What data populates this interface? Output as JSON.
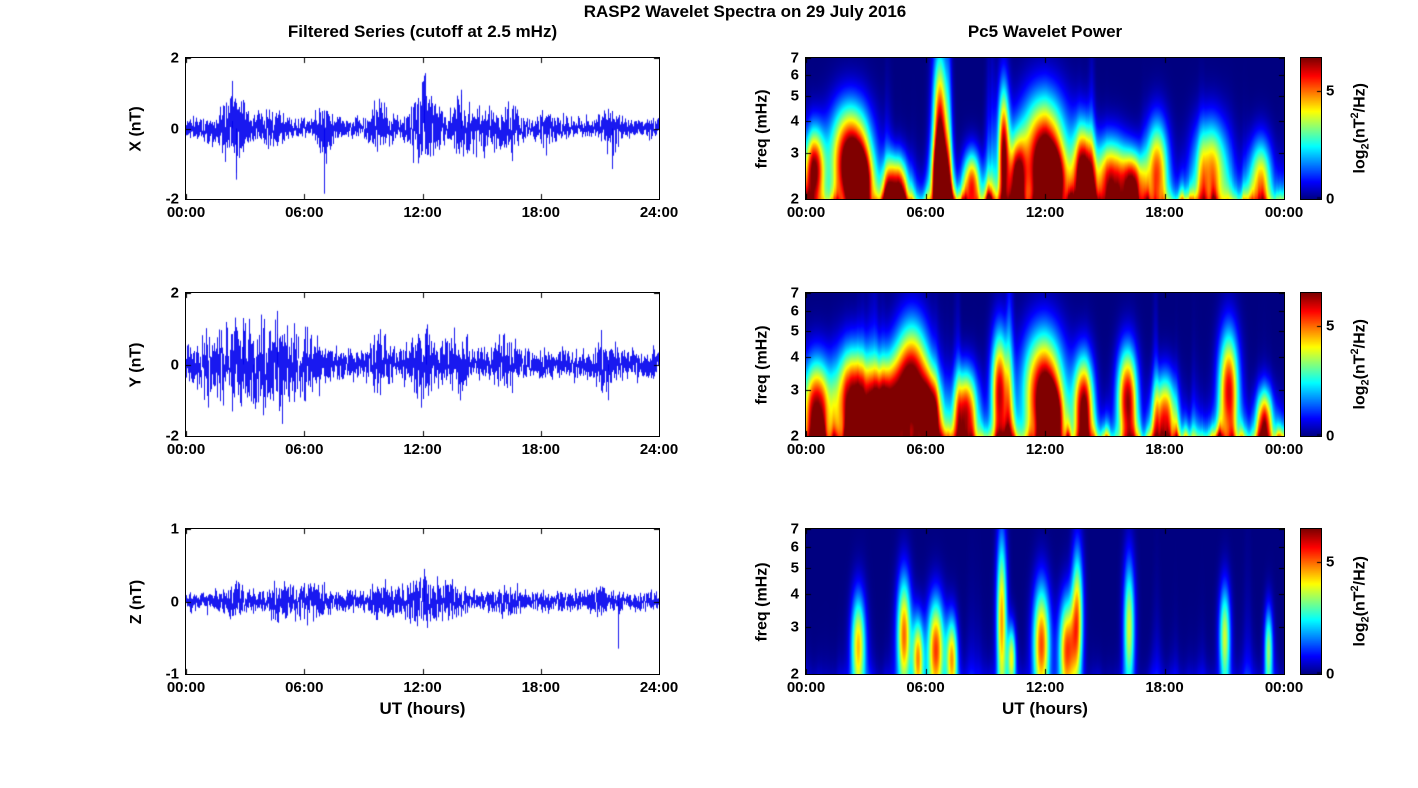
{
  "figure": {
    "title": "RASP2 Wavelet Spectra on 29 July 2016",
    "left_title": "Filtered Series (cutoff at 2.5 mHz)",
    "right_title": "Pc5 Wavelet Power",
    "xlabel": "UT (hours)"
  },
  "colorbar": {
    "label": {
      "p1": "log",
      "sub": "2",
      "p2": "(nT",
      "sup": "2",
      "p3": "/Hz)"
    },
    "ticks": [
      0,
      5
    ],
    "max": 6.5
  },
  "chart_data": [
    {
      "type": "line",
      "id": "ts-x",
      "ylabel": "X (nT)",
      "xlabel": "UT (hours)",
      "xlim": [
        0,
        24
      ],
      "ylim": [
        -2,
        2
      ],
      "yticks": [
        2,
        0,
        -2
      ],
      "xticks": [
        0,
        6,
        12,
        18,
        24
      ],
      "xtick_labels": [
        "00:00",
        "06:00",
        "12:00",
        "18:00",
        "24:00"
      ],
      "line_color": "#0000ee",
      "noise": {
        "seed": 11,
        "base": 0.2,
        "bursts": [
          [
            2.4,
            0.5,
            0.5
          ],
          [
            4.3,
            0.4,
            0.2
          ],
          [
            7.0,
            0.25,
            0.5
          ],
          [
            9.9,
            0.3,
            0.35
          ],
          [
            12.1,
            0.5,
            0.6
          ],
          [
            13.9,
            0.3,
            0.4
          ],
          [
            15.0,
            0.6,
            0.3
          ],
          [
            16.5,
            0.4,
            0.25
          ],
          [
            18.2,
            0.3,
            0.2
          ],
          [
            21.5,
            0.3,
            0.3
          ]
        ],
        "spikes": [
          [
            7.02,
            -1.85
          ],
          [
            12.1,
            1.5
          ],
          [
            2.35,
            1.35
          ],
          [
            13.95,
            1.1
          ],
          [
            21.6,
            -1.15
          ],
          [
            2.55,
            -1.45
          ]
        ]
      }
    },
    {
      "type": "line",
      "id": "ts-y",
      "ylabel": "Y (nT)",
      "xlabel": "UT (hours)",
      "xlim": [
        0,
        24
      ],
      "ylim": [
        -2,
        2
      ],
      "yticks": [
        2,
        0,
        -2
      ],
      "xticks": [
        0,
        6,
        12,
        18,
        24
      ],
      "xtick_labels": [
        "00:00",
        "06:00",
        "12:00",
        "18:00",
        "24:00"
      ],
      "line_color": "#0000ee",
      "noise": {
        "seed": 23,
        "base": 0.26,
        "bursts": [
          [
            1.0,
            0.6,
            0.25
          ],
          [
            2.5,
            0.8,
            0.45
          ],
          [
            4.5,
            0.9,
            0.55
          ],
          [
            6.3,
            0.5,
            0.3
          ],
          [
            9.8,
            0.4,
            0.3
          ],
          [
            12.0,
            0.6,
            0.4
          ],
          [
            13.8,
            0.4,
            0.3
          ],
          [
            16.2,
            0.5,
            0.25
          ],
          [
            21.3,
            0.4,
            0.3
          ]
        ],
        "spikes": [
          [
            4.6,
            1.5
          ],
          [
            2.9,
            1.3
          ],
          [
            3.4,
            -1.1
          ],
          [
            21.4,
            -1.0
          ],
          [
            12.2,
            1.0
          ]
        ]
      }
    },
    {
      "type": "line",
      "id": "ts-z",
      "ylabel": "Z (nT)",
      "xlabel": "UT (hours)",
      "xlim": [
        0,
        24
      ],
      "ylim": [
        -1,
        1
      ],
      "yticks": [
        1,
        0,
        -1
      ],
      "xticks": [
        0,
        6,
        12,
        18,
        24
      ],
      "xtick_labels": [
        "00:00",
        "06:00",
        "12:00",
        "18:00",
        "24:00"
      ],
      "line_color": "#0000ee",
      "noise": {
        "seed": 37,
        "base": 0.09,
        "bursts": [
          [
            2.5,
            0.5,
            0.08
          ],
          [
            5.0,
            0.6,
            0.1
          ],
          [
            6.5,
            0.4,
            0.1
          ],
          [
            9.8,
            0.4,
            0.08
          ],
          [
            12.0,
            0.8,
            0.16
          ],
          [
            13.2,
            0.5,
            0.1
          ],
          [
            16.0,
            0.5,
            0.06
          ],
          [
            21.0,
            0.4,
            0.05
          ]
        ],
        "spikes": [
          [
            21.9,
            -0.65
          ],
          [
            12.1,
            0.45
          ]
        ]
      }
    },
    {
      "type": "heatmap",
      "id": "wv-x",
      "ylabel": "freq (mHz)",
      "xlabel": "UT (hours)",
      "xlim": [
        0,
        24
      ],
      "ylim": [
        2,
        7
      ],
      "yscale": "log",
      "yticks": [
        7,
        6,
        5,
        4,
        3,
        2
      ],
      "xticks": [
        0,
        6,
        12,
        18,
        24
      ],
      "xtick_labels": [
        "00:00",
        "06:00",
        "12:00",
        "18:00",
        "00:00"
      ],
      "clim": [
        0,
        6.5
      ],
      "colorbar_ticks": [
        0,
        5
      ],
      "colorbar_label": "log2(nT^2/Hz)",
      "colormap": "jet",
      "field": {
        "seed": 101,
        "gain": 4.6,
        "reach": 1.5,
        "band": 4.8,
        "blobs": [
          [
            0.4,
            2.6,
            0.35,
            0.25,
            6.2
          ],
          [
            2.2,
            3.0,
            0.7,
            0.3,
            6.5
          ],
          [
            2.6,
            2.3,
            0.5,
            0.2,
            6.4
          ],
          [
            4.5,
            2.2,
            0.4,
            0.2,
            5.5
          ],
          [
            6.7,
            3.5,
            0.25,
            0.5,
            6.3
          ],
          [
            6.7,
            2.3,
            0.3,
            0.25,
            6.0
          ],
          [
            8.3,
            2.3,
            0.3,
            0.2,
            5.0
          ],
          [
            9.9,
            3.0,
            0.2,
            0.4,
            6.2
          ],
          [
            10.6,
            2.4,
            0.3,
            0.25,
            5.4
          ],
          [
            11.9,
            3.0,
            0.8,
            0.35,
            6.5
          ],
          [
            12.3,
            2.3,
            0.5,
            0.2,
            6.2
          ],
          [
            13.9,
            2.5,
            0.35,
            0.3,
            6.3
          ],
          [
            15.3,
            2.4,
            0.6,
            0.25,
            5.2
          ],
          [
            16.4,
            2.3,
            0.4,
            0.2,
            4.8
          ],
          [
            17.6,
            2.6,
            0.4,
            0.3,
            5.0
          ],
          [
            20.3,
            2.6,
            0.6,
            0.3,
            4.6
          ],
          [
            22.8,
            2.4,
            0.4,
            0.25,
            4.0
          ]
        ]
      }
    },
    {
      "type": "heatmap",
      "id": "wv-y",
      "ylabel": "freq (mHz)",
      "xlabel": "UT (hours)",
      "xlim": [
        0,
        24
      ],
      "ylim": [
        2,
        7
      ],
      "yscale": "log",
      "yticks": [
        7,
        6,
        5,
        4,
        3,
        2
      ],
      "xticks": [
        0,
        6,
        12,
        18,
        24
      ],
      "xtick_labels": [
        "00:00",
        "06:00",
        "12:00",
        "18:00",
        "00:00"
      ],
      "clim": [
        0,
        6.5
      ],
      "colorbar_ticks": [
        0,
        5
      ],
      "colorbar_label": "log2(nT^2/Hz)",
      "colormap": "jet",
      "field": {
        "seed": 202,
        "gain": 4.6,
        "reach": 1.5,
        "band": 5.2,
        "blobs": [
          [
            0.5,
            2.5,
            0.5,
            0.3,
            6.4
          ],
          [
            2.3,
            2.8,
            0.6,
            0.3,
            6.2
          ],
          [
            4.0,
            2.5,
            0.7,
            0.3,
            6.5
          ],
          [
            5.3,
            3.2,
            0.6,
            0.35,
            6.5
          ],
          [
            6.2,
            2.4,
            0.4,
            0.25,
            6.3
          ],
          [
            8.0,
            2.5,
            0.4,
            0.25,
            5.6
          ],
          [
            9.7,
            3.0,
            0.3,
            0.35,
            5.8
          ],
          [
            11.9,
            3.0,
            0.7,
            0.35,
            6.5
          ],
          [
            12.3,
            2.3,
            0.4,
            0.2,
            6.0
          ],
          [
            13.9,
            2.6,
            0.35,
            0.3,
            6.2
          ],
          [
            16.1,
            2.8,
            0.35,
            0.3,
            6.0
          ],
          [
            18.0,
            2.4,
            0.4,
            0.25,
            5.0
          ],
          [
            21.2,
            3.0,
            0.35,
            0.35,
            5.8
          ],
          [
            23.0,
            2.3,
            0.3,
            0.2,
            4.5
          ]
        ]
      }
    },
    {
      "type": "heatmap",
      "id": "wv-z",
      "ylabel": "freq (mHz)",
      "xlabel": "UT (hours)",
      "xlim": [
        0,
        24
      ],
      "ylim": [
        2,
        7
      ],
      "yscale": "log",
      "yticks": [
        7,
        6,
        5,
        4,
        3,
        2
      ],
      "xticks": [
        0,
        6,
        12,
        18,
        24
      ],
      "xtick_labels": [
        "00:00",
        "06:00",
        "12:00",
        "18:00",
        "00:00"
      ],
      "clim": [
        0,
        6.5
      ],
      "colorbar_ticks": [
        0,
        5
      ],
      "colorbar_label": "log2(nT^2/Hz)",
      "colormap": "jet",
      "field": {
        "seed": 303,
        "gain": 0.9,
        "reach": 0.9,
        "band": 0.55,
        "blobs": [
          [
            2.6,
            2.6,
            0.25,
            0.3,
            4.2
          ],
          [
            4.9,
            2.8,
            0.25,
            0.35,
            5.0
          ],
          [
            5.6,
            2.3,
            0.2,
            0.25,
            4.6
          ],
          [
            6.5,
            2.5,
            0.3,
            0.3,
            5.2
          ],
          [
            7.3,
            2.3,
            0.2,
            0.25,
            4.4
          ],
          [
            9.8,
            3.2,
            0.18,
            0.5,
            4.6
          ],
          [
            10.3,
            2.3,
            0.15,
            0.2,
            3.8
          ],
          [
            11.8,
            2.6,
            0.3,
            0.35,
            5.2
          ],
          [
            13.1,
            2.5,
            0.3,
            0.3,
            5.0
          ],
          [
            13.6,
            3.3,
            0.2,
            0.4,
            4.4
          ],
          [
            16.2,
            3.0,
            0.2,
            0.4,
            3.8
          ],
          [
            21.0,
            2.8,
            0.2,
            0.3,
            3.6
          ],
          [
            23.2,
            2.5,
            0.15,
            0.25,
            3.2
          ]
        ]
      }
    }
  ]
}
